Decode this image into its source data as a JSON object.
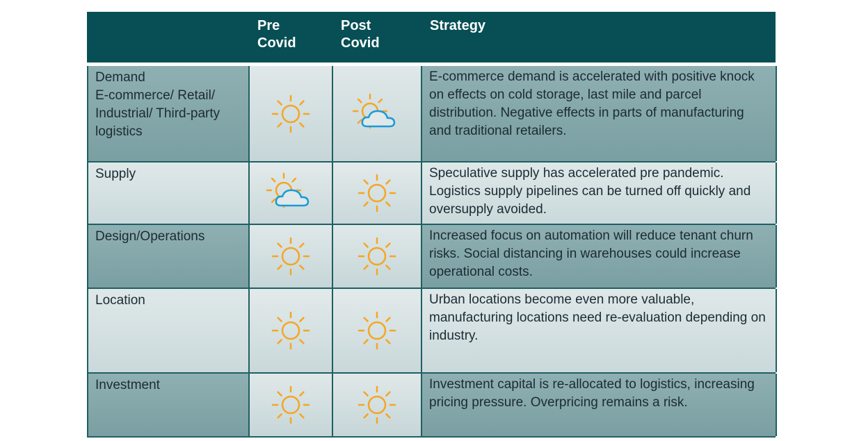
{
  "header": {
    "col_pre": "Pre\nCovid",
    "col_post": "Post\nCovid",
    "col_strategy": "Strategy"
  },
  "colors": {
    "header_bg": "#074f55",
    "sun": "#f5a623",
    "cloud": "#1b9ad6"
  },
  "rows": [
    {
      "label": "Demand\nE-commerce/ Retail/\nIndustrial/ Third-party\nlogistics",
      "pre_icon": "sun-icon",
      "post_icon": "sun-behind-cloud-icon",
      "strategy": "E-commerce demand is accelerated with positive knock on effects on cold storage, last mile and parcel distribution. Negative effects in parts of manufacturing and traditional retailers."
    },
    {
      "label": "Supply",
      "pre_icon": "sun-behind-cloud-icon",
      "post_icon": "sun-icon",
      "strategy": "Speculative supply has accelerated pre pandemic. Logistics supply pipelines can be turned off quickly and oversupply avoided."
    },
    {
      "label": "Design/Operations",
      "pre_icon": "sun-icon",
      "post_icon": "sun-icon",
      "strategy": "Increased focus on automation will reduce tenant churn risks. Social distancing in warehouses could increase operational costs."
    },
    {
      "label": "Location",
      "pre_icon": "sun-icon",
      "post_icon": "sun-icon",
      "strategy": "Urban locations become even more valuable, manufacturing locations need re-evaluation depending on industry."
    },
    {
      "label": "Investment",
      "pre_icon": "sun-icon",
      "post_icon": "sun-icon",
      "strategy": "Investment capital is re-allocated to logistics, increasing pricing pressure. Overpricing remains a risk."
    }
  ]
}
